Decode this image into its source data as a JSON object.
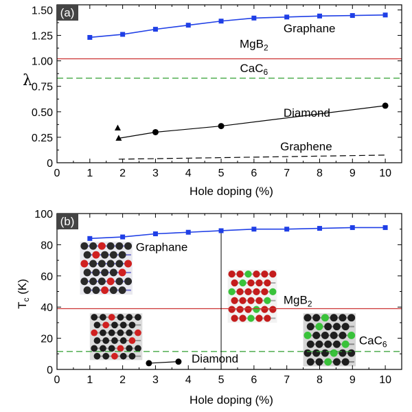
{
  "chart_data": [
    {
      "type": "line",
      "panel_label": "(a)",
      "xlabel": "Hole doping (%)",
      "ylabel": "λ",
      "xlim": [
        0,
        10.5
      ],
      "ylim": [
        0,
        1.55
      ],
      "x_ticks": [
        0,
        1,
        2,
        3,
        4,
        5,
        6,
        7,
        8,
        9,
        10
      ],
      "y_ticks": [
        "0",
        "0.25",
        "0.50",
        "0.75",
        "1.00",
        "1.25",
        "1.50"
      ],
      "grid": false,
      "series": [
        {
          "name": "Graphane",
          "color": "#1f3fe6",
          "marker": "square",
          "style": "solid",
          "x": [
            1,
            2,
            3,
            4,
            5,
            6,
            7,
            8,
            9,
            10
          ],
          "y": [
            1.23,
            1.26,
            1.31,
            1.35,
            1.39,
            1.42,
            1.43,
            1.44,
            1.445,
            1.45
          ]
        },
        {
          "name": "Diamond",
          "color": "#000000",
          "marker": "circle",
          "style": "solid",
          "x": [
            1.88,
            3,
            5,
            10
          ],
          "y": [
            0.24,
            0.3,
            0.36,
            0.56
          ],
          "first_point_marker": "triangle"
        },
        {
          "name": "Diamond-extra",
          "color": "#000000",
          "marker": "triangle",
          "style": "none",
          "x": [
            1.85
          ],
          "y": [
            0.34
          ]
        },
        {
          "name": "Graphene",
          "color": "#000000",
          "marker": "none",
          "style": "dashed",
          "x": [
            1.88,
            4,
            6,
            8,
            10
          ],
          "y": [
            0.035,
            0.045,
            0.055,
            0.065,
            0.075
          ]
        }
      ],
      "reference_lines": [
        {
          "name": "MgB",
          "sub": "2",
          "y": 1.02,
          "color": "#cc3333",
          "style": "solid"
        },
        {
          "name": "CaC",
          "sub": "6",
          "y": 0.83,
          "color": "#2e9e2e",
          "style": "dashed"
        }
      ],
      "annotations": [
        {
          "text": "Graphane",
          "x": 6.9,
          "y": 1.28
        },
        {
          "text": "Diamond",
          "x": 6.9,
          "y": 0.45
        },
        {
          "text": "Graphene",
          "x": 6.8,
          "y": 0.12
        }
      ]
    },
    {
      "type": "line",
      "panel_label": "(b)",
      "xlabel": "Hole doping (%)",
      "ylabel": "T",
      "ylabel_sub": "c",
      "ylabel_suffix": " (K)",
      "xlim": [
        0,
        10.5
      ],
      "ylim": [
        0,
        100
      ],
      "x_ticks": [
        0,
        1,
        2,
        3,
        4,
        5,
        6,
        7,
        8,
        9,
        10
      ],
      "y_ticks": [
        0,
        20,
        40,
        60,
        80,
        100
      ],
      "grid": false,
      "series": [
        {
          "name": "Graphane",
          "color": "#1f3fe6",
          "marker": "square",
          "style": "solid",
          "x": [
            1,
            2,
            3,
            4,
            5,
            6,
            7,
            8,
            9,
            10
          ],
          "y": [
            84,
            85,
            87,
            88,
            89,
            90,
            90,
            90.5,
            91,
            91
          ]
        },
        {
          "name": "Diamond",
          "color": "#000000",
          "marker": "circle",
          "style": "solid",
          "x": [
            2.8,
            3.7
          ],
          "y": [
            4,
            5
          ]
        }
      ],
      "reference_lines": [
        {
          "name": "MgB",
          "sub": "2",
          "y": 39,
          "color": "#cc3333",
          "style": "solid"
        },
        {
          "name": "CaC",
          "sub": "6",
          "y": 11.5,
          "color": "#2e9e2e",
          "style": "dashed"
        }
      ],
      "vertical_line": {
        "x": 5,
        "from": 0,
        "to": 89,
        "color": "#000000"
      },
      "annotations": [
        {
          "text": "Graphane",
          "x": 2.4,
          "y": 76
        },
        {
          "text": "MgB",
          "sub": "2",
          "x": 6.9,
          "y": 42
        },
        {
          "text": "CaC",
          "sub": "6",
          "x": 9.2,
          "y": 16
        },
        {
          "text": "Diamond",
          "x": 4.1,
          "y": 4.5
        }
      ],
      "inset_structures": [
        {
          "name": "graphane-structure",
          "x0": 0.7,
          "x1": 2.3,
          "y0": 48,
          "y1": 82,
          "theme": "graphane"
        },
        {
          "name": "diamond-structure",
          "x0": 1.0,
          "x1": 2.6,
          "y0": 6,
          "y1": 36,
          "theme": "diamond"
        },
        {
          "name": "mgb2-structure",
          "x0": 5.2,
          "x1": 6.7,
          "y0": 30,
          "y1": 64,
          "theme": "mgb2"
        },
        {
          "name": "cac6-structure",
          "x0": 7.5,
          "x1": 9.1,
          "y0": 2,
          "y1": 36,
          "theme": "cac6"
        }
      ]
    }
  ]
}
